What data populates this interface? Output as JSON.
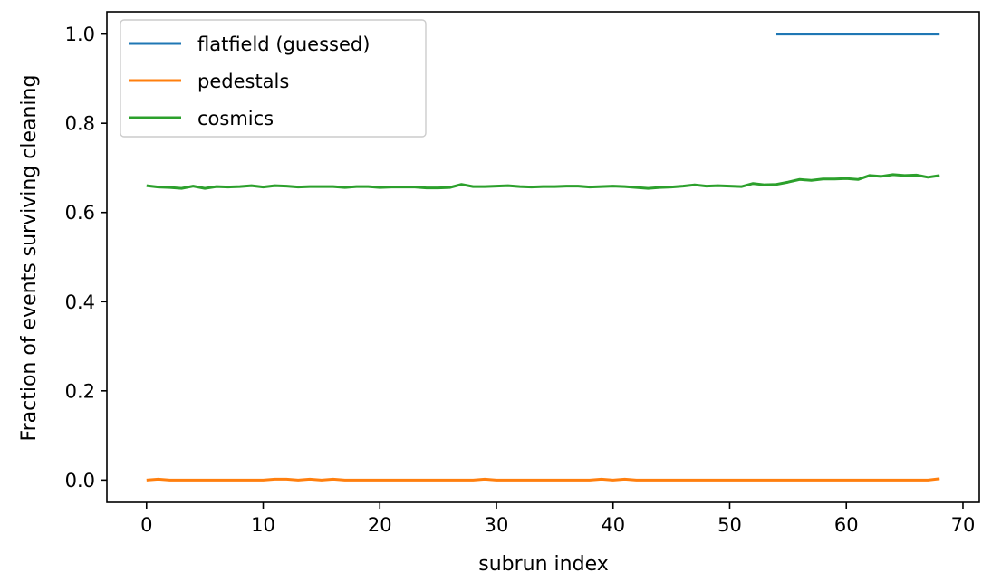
{
  "chart_data": {
    "type": "line",
    "title": "",
    "xlabel": "subrun index",
    "ylabel": "Fraction of events surviving cleaning",
    "xlim": [
      -3.4,
      71.4
    ],
    "ylim": [
      -0.05,
      1.05
    ],
    "xticks": [
      0,
      10,
      20,
      30,
      40,
      50,
      60,
      70
    ],
    "xtick_labels": [
      "0",
      "10",
      "20",
      "30",
      "40",
      "50",
      "60",
      "70"
    ],
    "yticks": [
      0.0,
      0.2,
      0.4,
      0.6,
      0.8,
      1.0
    ],
    "ytick_labels": [
      "0.0",
      "0.2",
      "0.4",
      "0.6",
      "0.8",
      "1.0"
    ],
    "grid": false,
    "legend_position": "top-left",
    "series": [
      {
        "name": "flatfield (guessed)",
        "color": "#1f77b4",
        "x": [
          54,
          55,
          56,
          57,
          58,
          59,
          60,
          61,
          62,
          63,
          64,
          65,
          66,
          67,
          68
        ],
        "y": [
          1.0,
          1.0,
          1.0,
          1.0,
          1.0,
          1.0,
          1.0,
          1.0,
          1.0,
          1.0,
          1.0,
          1.0,
          1.0,
          1.0,
          1.0
        ]
      },
      {
        "name": "pedestals",
        "color": "#ff7f0e",
        "x": [
          0,
          1,
          2,
          3,
          4,
          5,
          6,
          7,
          8,
          9,
          10,
          11,
          12,
          13,
          14,
          15,
          16,
          17,
          18,
          19,
          20,
          21,
          22,
          23,
          24,
          25,
          26,
          27,
          28,
          29,
          30,
          31,
          32,
          33,
          34,
          35,
          36,
          37,
          38,
          39,
          40,
          41,
          42,
          43,
          44,
          45,
          46,
          47,
          48,
          49,
          50,
          51,
          52,
          53,
          54,
          55,
          56,
          57,
          58,
          59,
          60,
          61,
          62,
          63,
          64,
          65,
          66,
          67,
          68
        ],
        "y": [
          0.0,
          0.002,
          0.0,
          0.0,
          0.0,
          0.0,
          0.0,
          0.0,
          0.0,
          0.0,
          0.0,
          0.002,
          0.002,
          0.0,
          0.002,
          0.0,
          0.002,
          0.0,
          0.0,
          0.0,
          0.0,
          0.0,
          0.0,
          0.0,
          0.0,
          0.0,
          0.0,
          0.0,
          0.0,
          0.002,
          0.0,
          0.0,
          0.0,
          0.0,
          0.0,
          0.0,
          0.0,
          0.0,
          0.0,
          0.002,
          0.0,
          0.002,
          0.0,
          0.0,
          0.0,
          0.0,
          0.0,
          0.0,
          0.0,
          0.0,
          0.0,
          0.0,
          0.0,
          0.0,
          0.0,
          0.0,
          0.0,
          0.0,
          0.0,
          0.0,
          0.0,
          0.0,
          0.0,
          0.0,
          0.0,
          0.0,
          0.0,
          0.0,
          0.003
        ]
      },
      {
        "name": "cosmics",
        "color": "#2ca02c",
        "x": [
          0,
          1,
          2,
          3,
          4,
          5,
          6,
          7,
          8,
          9,
          10,
          11,
          12,
          13,
          14,
          15,
          16,
          17,
          18,
          19,
          20,
          21,
          22,
          23,
          24,
          25,
          26,
          27,
          28,
          29,
          30,
          31,
          32,
          33,
          34,
          35,
          36,
          37,
          38,
          39,
          40,
          41,
          42,
          43,
          44,
          45,
          46,
          47,
          48,
          49,
          50,
          51,
          52,
          53,
          54,
          55,
          56,
          57,
          58,
          59,
          60,
          61,
          62,
          63,
          64,
          65,
          66,
          67,
          68
        ],
        "y": [
          0.66,
          0.657,
          0.656,
          0.654,
          0.659,
          0.654,
          0.658,
          0.657,
          0.658,
          0.66,
          0.657,
          0.66,
          0.659,
          0.657,
          0.658,
          0.658,
          0.658,
          0.656,
          0.658,
          0.658,
          0.656,
          0.657,
          0.657,
          0.657,
          0.655,
          0.655,
          0.656,
          0.663,
          0.658,
          0.658,
          0.659,
          0.66,
          0.658,
          0.657,
          0.658,
          0.658,
          0.659,
          0.659,
          0.657,
          0.658,
          0.659,
          0.658,
          0.656,
          0.654,
          0.656,
          0.657,
          0.659,
          0.662,
          0.659,
          0.66,
          0.659,
          0.658,
          0.665,
          0.662,
          0.663,
          0.668,
          0.674,
          0.672,
          0.675,
          0.675,
          0.676,
          0.674,
          0.683,
          0.681,
          0.685,
          0.683,
          0.684,
          0.679,
          0.683
        ]
      }
    ]
  }
}
